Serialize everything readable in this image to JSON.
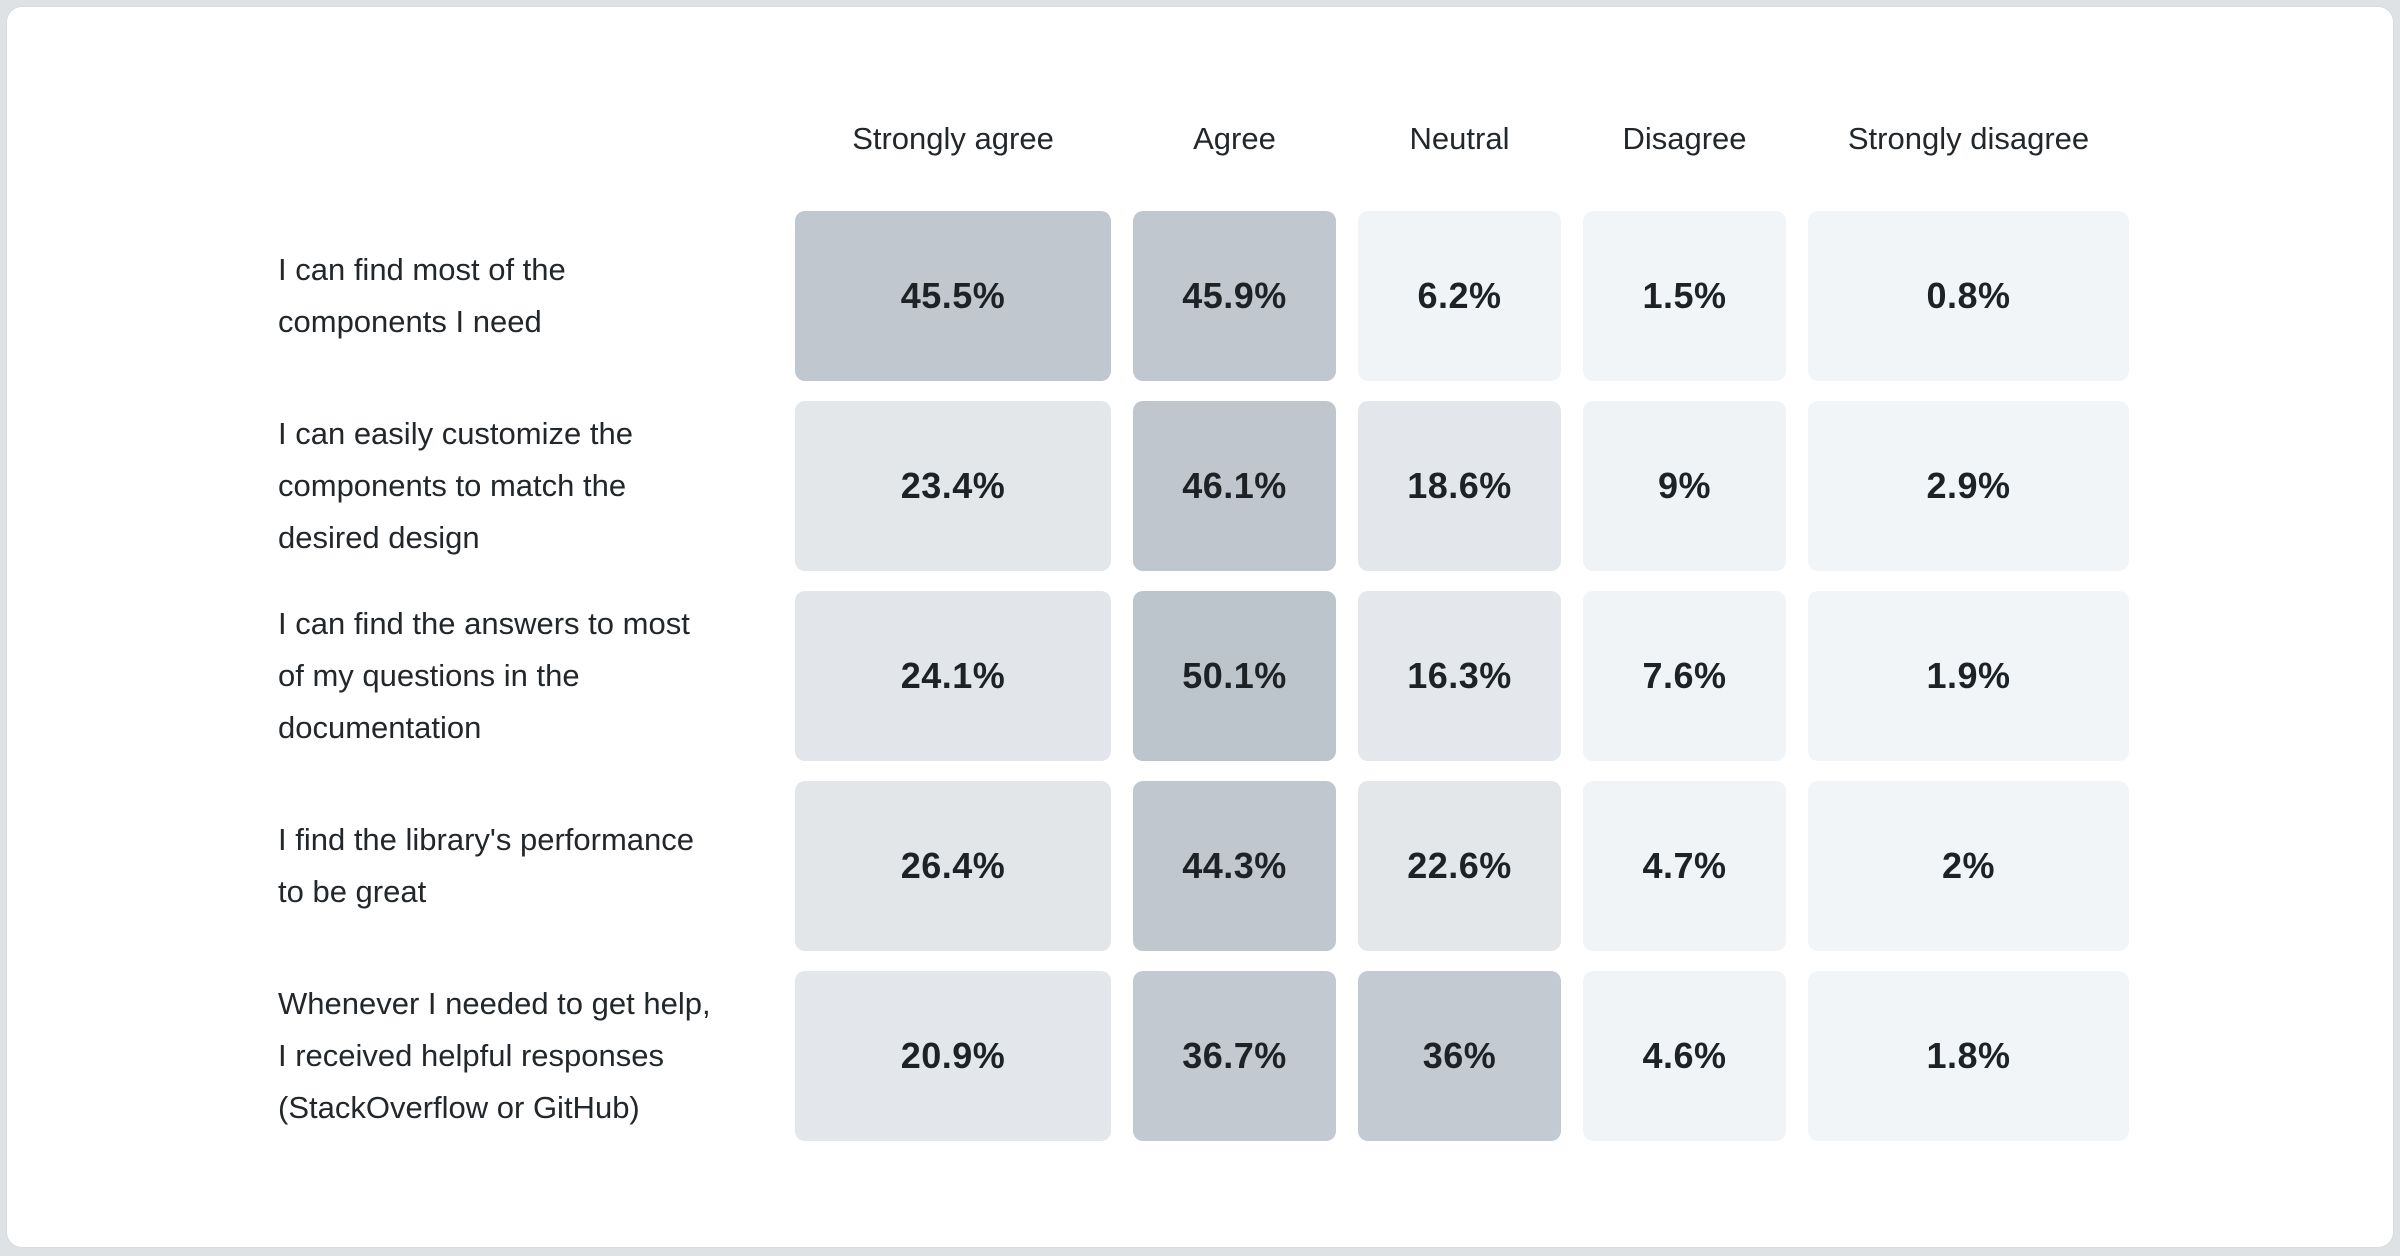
{
  "page": {
    "background_color": "#dfe2e5",
    "card_background_color": "#ffffff",
    "card_border_color": "#d7dbde",
    "header_text_color": "#21272a",
    "label_text_color": "#21272a",
    "value_text_color": "#1d2226"
  },
  "chart_data": {
    "type": "heatmap",
    "title": "",
    "value_format": "percent",
    "legend_position": "none",
    "columns": [
      "Strongly agree",
      "Agree",
      "Neutral",
      "Disagree",
      "Strongly disagree"
    ],
    "rows": [
      {
        "label": "I can find most of the\ncomponents I need",
        "values": [
          45.5,
          45.9,
          6.2,
          1.5,
          0.8
        ],
        "display": [
          "45.5%",
          "45.9%",
          "6.2%",
          "1.5%",
          "0.8%"
        ],
        "colors": [
          "#c0c7ce",
          "#c0c7ce",
          "#f1f4f6",
          "#f2f5f7",
          "#f2f5f7"
        ]
      },
      {
        "label": "I can easily customize the\ncomponents to match the\ndesired design",
        "values": [
          23.4,
          46.1,
          18.6,
          9,
          2.9
        ],
        "display": [
          "23.4%",
          "46.1%",
          "18.6%",
          "9%",
          "2.9%"
        ],
        "colors": [
          "#e3e7ea",
          "#bfc6ce",
          "#e3e7eb",
          "#f0f3f6",
          "#f2f5f7"
        ]
      },
      {
        "label": "I can find the answers to most\nof my questions in the\ndocumentation",
        "values": [
          24.1,
          50.1,
          16.3,
          7.6,
          1.9
        ],
        "display": [
          "24.1%",
          "50.1%",
          "16.3%",
          "7.6%",
          "1.9%"
        ],
        "colors": [
          "#e2e6ea",
          "#bcc4cc",
          "#e4e8ec",
          "#f1f4f6",
          "#f2f5f7"
        ]
      },
      {
        "label": "I find the library's performance\nto be great",
        "values": [
          26.4,
          44.3,
          22.6,
          4.7,
          2
        ],
        "display": [
          "26.4%",
          "44.3%",
          "22.6%",
          "4.7%",
          "2%"
        ],
        "colors": [
          "#e2e6e9",
          "#c0c7ce",
          "#e3e7ea",
          "#f1f4f7",
          "#f2f5f7"
        ]
      },
      {
        "label": "Whenever I needed to get help,\nI received helpful responses\n(StackOverflow or GitHub)",
        "values": [
          20.9,
          36.7,
          36,
          4.6,
          1.8
        ],
        "display": [
          "20.9%",
          "36.7%",
          "36%",
          "4.6%",
          "1.8%"
        ],
        "colors": [
          "#e3e7eb",
          "#c2c9d0",
          "#c3cad1",
          "#f1f4f7",
          "#f2f5f7"
        ]
      }
    ],
    "color_scale": {
      "low_value": 0,
      "high_value": 50.1,
      "low_color": "#f2f5f7",
      "high_color": "#bcc4cc"
    }
  }
}
